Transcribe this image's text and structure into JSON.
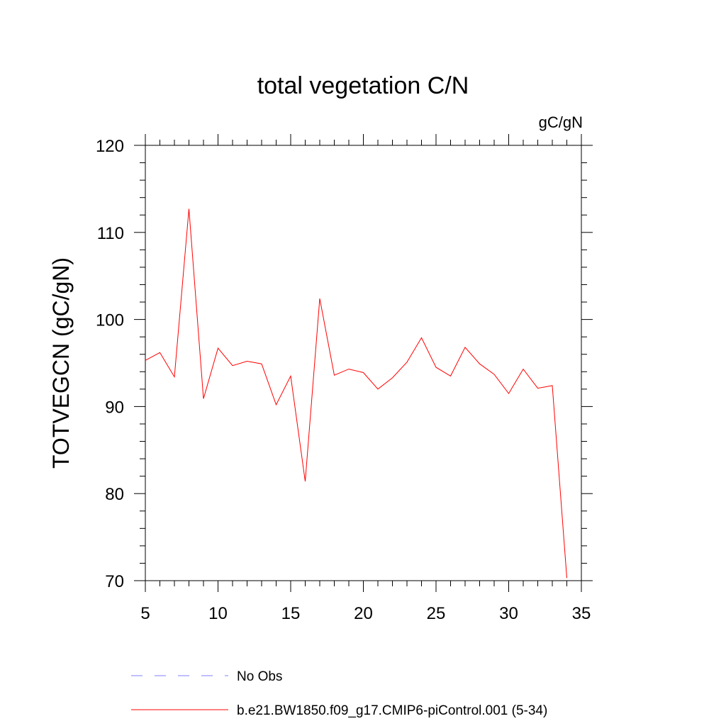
{
  "chart_data": {
    "type": "line",
    "title": "total vegetation C/N",
    "units_label": "gC/gN",
    "ylabel": "TOTVEGCN  (gC/gN)",
    "xlabel": "",
    "xlim": [
      5,
      35
    ],
    "ylim": [
      70,
      120
    ],
    "x_ticks": [
      5,
      10,
      15,
      20,
      25,
      30,
      35
    ],
    "y_ticks": [
      70,
      80,
      90,
      100,
      110,
      120
    ],
    "grid": false,
    "legend_position": "bottom",
    "series": [
      {
        "name": "b.e21.BW1850.f09_g17.CMIP6-piControl.001 (5-34)",
        "color": "#ff0000",
        "style": "solid",
        "x": [
          5,
          6,
          7,
          8,
          9,
          10,
          11,
          12,
          13,
          14,
          15,
          16,
          17,
          18,
          19,
          20,
          21,
          22,
          23,
          24,
          25,
          26,
          27,
          28,
          29,
          30,
          31,
          32,
          33,
          34
        ],
        "values": [
          95.3,
          96.2,
          93.4,
          112.7,
          90.9,
          96.7,
          94.7,
          95.2,
          94.9,
          90.2,
          93.5,
          81.4,
          102.4,
          93.6,
          94.3,
          93.9,
          92.0,
          93.3,
          95.1,
          97.9,
          94.5,
          93.5,
          96.8,
          94.9,
          93.7,
          91.5,
          94.3,
          92.1,
          92.4,
          70.3
        ]
      }
    ],
    "legend": [
      {
        "label": "No Obs",
        "color": "#7f7fff",
        "style": "dashed"
      },
      {
        "label": "b.e21.BW1850.f09_g17.CMIP6-piControl.001 (5-34)",
        "color": "#ff0000",
        "style": "solid"
      }
    ]
  }
}
